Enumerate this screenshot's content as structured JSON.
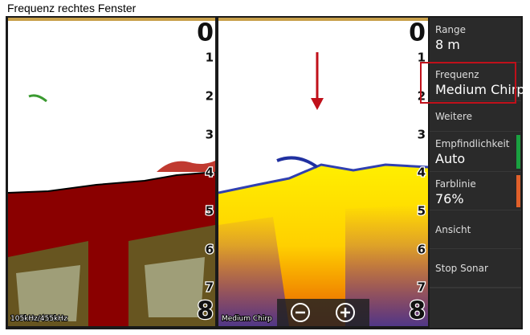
{
  "caption": "Frequenz rechtes Fenster",
  "left_panel": {
    "depth_labels": [
      0,
      1,
      2,
      3,
      4,
      5,
      6,
      7,
      8
    ],
    "frequency": "105kHz/455kHz"
  },
  "right_panel": {
    "depth_labels": [
      0,
      1,
      2,
      3,
      4,
      5,
      6,
      7,
      8
    ],
    "frequency": "Medium Chirp"
  },
  "menu": [
    {
      "label": "Range",
      "value": "8 m"
    },
    {
      "label": "Frequenz",
      "value": "Medium Chirp"
    },
    {
      "label": "Weitere"
    },
    {
      "label": "Empfindlichkeit",
      "value": "Auto"
    },
    {
      "label": "Farblinie",
      "value": "76%"
    },
    {
      "label": "Ansicht"
    },
    {
      "label": "Stop Sonar"
    }
  ]
}
